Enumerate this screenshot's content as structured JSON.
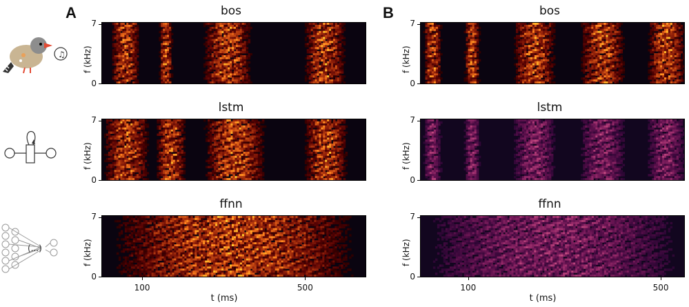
{
  "panels": {
    "A": "A",
    "B": "B"
  },
  "icons": [
    "zebra-finch-icon",
    "lstm-cell-icon",
    "ffnn-network-icon"
  ],
  "chart_data": [
    {
      "type": "heatmap",
      "panel": "A",
      "title": "bos",
      "xlabel": "",
      "ylabel": "f (kHz)",
      "yticks": [
        "7",
        "0"
      ],
      "xticks": [],
      "colormap": "inferno",
      "x_range_ms": [
        0,
        650
      ],
      "y_range_khz": [
        0,
        7
      ],
      "segments_ms": [
        [
          20,
          95
        ],
        [
          140,
          175
        ],
        [
          245,
          375
        ],
        [
          495,
          605
        ]
      ]
    },
    {
      "type": "heatmap",
      "panel": "A",
      "title": "lstm",
      "xlabel": "",
      "ylabel": "f (kHz)",
      "yticks": [
        "7",
        "0"
      ],
      "xticks": [],
      "colormap": "inferno",
      "x_range_ms": [
        0,
        650
      ],
      "y_range_khz": [
        0,
        7
      ],
      "segments_ms": [
        [
          0,
          120
        ],
        [
          130,
          210
        ],
        [
          245,
          410
        ],
        [
          495,
          610
        ]
      ]
    },
    {
      "type": "heatmap",
      "panel": "A",
      "title": "ffnn",
      "xlabel": "t (ms)",
      "ylabel": "f (kHz)",
      "yticks": [
        "7",
        "0"
      ],
      "xticks": [
        "100",
        "500"
      ],
      "xtick_values": [
        100,
        500
      ],
      "colormap": "inferno",
      "x_range_ms": [
        0,
        650
      ],
      "y_range_khz": [
        0,
        7
      ],
      "segments_ms": [
        [
          0,
          650
        ]
      ]
    },
    {
      "type": "heatmap",
      "panel": "B",
      "title": "bos",
      "xlabel": "",
      "ylabel": "f (kHz)",
      "yticks": [
        "7",
        "0"
      ],
      "xticks": [],
      "colormap": "inferno",
      "x_range_ms": [
        0,
        550
      ],
      "y_range_khz": [
        0,
        7
      ],
      "segments_ms": [
        [
          5,
          45
        ],
        [
          90,
          125
        ],
        [
          190,
          285
        ],
        [
          330,
          430
        ],
        [
          470,
          555
        ]
      ]
    },
    {
      "type": "heatmap",
      "panel": "B",
      "title": "lstm",
      "xlabel": "",
      "ylabel": "f (kHz)",
      "yticks": [
        "7",
        "0"
      ],
      "xticks": [],
      "colormap": "inferno",
      "x_range_ms": [
        0,
        550
      ],
      "y_range_khz": [
        0,
        7
      ],
      "segments_ms": [
        [
          5,
          45
        ],
        [
          90,
          125
        ],
        [
          190,
          285
        ],
        [
          330,
          430
        ],
        [
          470,
          555
        ]
      ]
    },
    {
      "type": "heatmap",
      "panel": "B",
      "title": "ffnn",
      "xlabel": "t (ms)",
      "ylabel": "f (kHz)",
      "yticks": [
        "7",
        "0"
      ],
      "xticks": [
        "100",
        "500"
      ],
      "xtick_values": [
        100,
        500
      ],
      "colormap": "inferno",
      "x_range_ms": [
        0,
        550
      ],
      "y_range_khz": [
        0,
        7
      ],
      "segments_ms": [
        [
          0,
          555
        ]
      ]
    }
  ]
}
